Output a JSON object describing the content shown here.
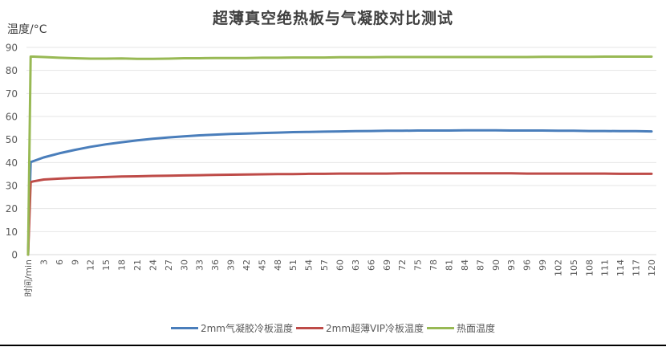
{
  "chart_data": {
    "type": "line",
    "title": "超薄真空绝热板与气凝胶对比测试",
    "xlabel": "时间/min",
    "ylabel": "温度/°C",
    "ylim": [
      0,
      90
    ],
    "yticks": [
      0,
      10,
      20,
      30,
      40,
      50,
      60,
      70,
      80,
      90
    ],
    "xlim": [
      0,
      120
    ],
    "xticks_labels": [
      "时间/min",
      "3",
      "6",
      "9",
      "12",
      "15",
      "18",
      "21",
      "24",
      "27",
      "30",
      "33",
      "36",
      "39",
      "42",
      "45",
      "48",
      "51",
      "54",
      "57",
      "60",
      "63",
      "66",
      "69",
      "72",
      "75",
      "78",
      "81",
      "84",
      "87",
      "90",
      "93",
      "96",
      "99",
      "102",
      "105",
      "108",
      "111",
      "114",
      "117",
      "120"
    ],
    "grid": true,
    "legend_position": "bottom",
    "x": [
      0,
      0.5,
      1,
      3,
      6,
      9,
      12,
      15,
      18,
      21,
      24,
      27,
      30,
      33,
      36,
      39,
      42,
      45,
      48,
      51,
      54,
      57,
      60,
      63,
      66,
      69,
      72,
      75,
      78,
      81,
      84,
      87,
      90,
      93,
      96,
      99,
      102,
      105,
      108,
      111,
      114,
      117,
      120
    ],
    "series": [
      {
        "name": "2mm气凝胶冷板温度",
        "color": "#4a7ebb",
        "values": [
          0,
          40.2,
          40.6,
          42.2,
          44.0,
          45.5,
          46.8,
          47.9,
          48.8,
          49.6,
          50.3,
          50.9,
          51.4,
          51.8,
          52.1,
          52.4,
          52.6,
          52.8,
          53.0,
          53.2,
          53.3,
          53.4,
          53.5,
          53.6,
          53.7,
          53.8,
          53.8,
          53.9,
          53.9,
          53.9,
          54.0,
          54.0,
          54.0,
          53.9,
          53.9,
          53.9,
          53.8,
          53.8,
          53.7,
          53.7,
          53.6,
          53.6,
          53.5
        ]
      },
      {
        "name": "2mm超薄VIP冷板温度",
        "color": "#be4b48",
        "values": [
          0,
          31.5,
          31.8,
          32.6,
          33.0,
          33.3,
          33.5,
          33.7,
          33.9,
          34.0,
          34.2,
          34.3,
          34.4,
          34.5,
          34.6,
          34.7,
          34.8,
          34.9,
          35.0,
          35.0,
          35.1,
          35.1,
          35.2,
          35.2,
          35.2,
          35.2,
          35.3,
          35.3,
          35.3,
          35.3,
          35.3,
          35.3,
          35.3,
          35.3,
          35.2,
          35.2,
          35.2,
          35.2,
          35.2,
          35.2,
          35.1,
          35.1,
          35.1
        ]
      },
      {
        "name": "热面温度",
        "color": "#98b954",
        "values": [
          0,
          86.0,
          86.0,
          85.8,
          85.5,
          85.3,
          85.1,
          85.1,
          85.2,
          85.0,
          85.0,
          85.1,
          85.3,
          85.3,
          85.4,
          85.4,
          85.4,
          85.5,
          85.5,
          85.6,
          85.6,
          85.6,
          85.7,
          85.7,
          85.7,
          85.8,
          85.8,
          85.8,
          85.8,
          85.8,
          85.8,
          85.8,
          85.8,
          85.8,
          85.8,
          85.9,
          85.9,
          85.9,
          85.9,
          86.0,
          86.0,
          86.0,
          86.0
        ]
      }
    ]
  },
  "header": {
    "title": "超薄真空绝热板与气凝胶对比测试",
    "y_axis_label": "温度/°C"
  },
  "legend": {
    "items": [
      {
        "label": "2mm气凝胶冷板温度",
        "color": "#4a7ebb"
      },
      {
        "label": "2mm超薄VIP冷板温度",
        "color": "#be4b48"
      },
      {
        "label": "热面温度",
        "color": "#98b954"
      }
    ]
  }
}
